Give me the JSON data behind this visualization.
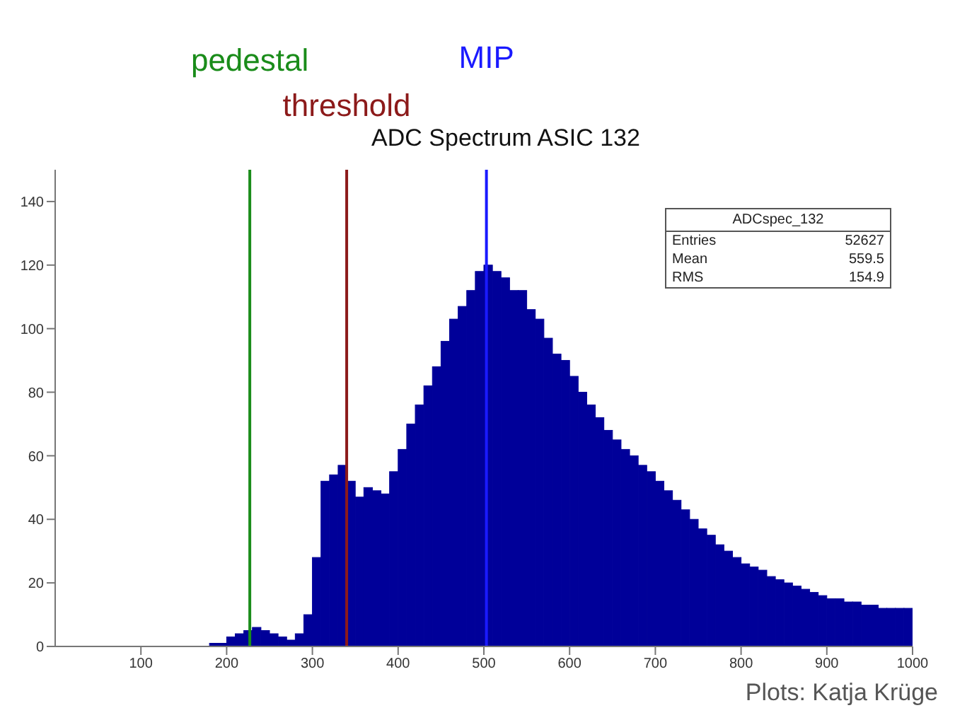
{
  "chart_data": {
    "type": "histogram",
    "title": "ADC Spectrum ASIC 132",
    "bins": [
      180,
      190,
      200,
      210,
      220,
      230,
      240,
      250,
      260,
      270,
      280,
      290,
      300,
      310,
      320,
      330,
      340,
      350,
      360,
      370,
      380,
      390,
      400,
      410,
      420,
      430,
      440,
      450,
      460,
      470,
      480,
      490,
      500,
      510,
      520,
      530,
      540,
      550,
      560,
      570,
      580,
      590,
      600,
      610,
      620,
      630,
      640,
      650,
      660,
      670,
      680,
      690,
      700,
      710,
      720,
      730,
      740,
      750,
      760,
      770,
      780,
      790,
      800,
      810,
      820,
      830,
      840,
      850,
      860,
      870,
      880,
      890,
      900,
      910,
      920,
      930,
      940,
      950,
      960,
      970,
      980,
      990,
      1000
    ],
    "values": [
      1,
      1,
      3,
      4,
      5,
      6,
      5,
      4,
      3,
      2,
      4,
      10,
      28,
      52,
      54,
      57,
      52,
      47,
      50,
      49,
      48,
      55,
      62,
      70,
      76,
      82,
      88,
      96,
      103,
      107,
      112,
      118,
      120,
      118,
      116,
      112,
      112,
      106,
      103,
      97,
      92,
      90,
      85,
      80,
      76,
      72,
      68,
      65,
      62,
      60,
      57,
      55,
      52,
      49,
      46,
      43,
      40,
      37,
      35,
      32,
      30,
      28,
      26,
      25,
      24,
      22,
      21,
      20,
      19,
      18,
      17,
      16,
      15,
      15,
      14,
      14,
      13,
      13,
      12,
      12,
      12,
      12
    ],
    "color": "#000099",
    "xlim": [
      0,
      1000
    ],
    "xticks": [
      100,
      200,
      300,
      400,
      500,
      600,
      700,
      800,
      900,
      1000
    ],
    "ylim": [
      0,
      150
    ],
    "yticks": [
      0,
      20,
      40,
      60,
      80,
      100,
      120,
      140
    ],
    "ref_lines": [
      {
        "axis": "x",
        "value": 227,
        "label": "pedestal",
        "color": "#1a8c1a"
      },
      {
        "axis": "x",
        "value": 340,
        "label": "threshold",
        "color": "#8c1a1a"
      },
      {
        "axis": "x",
        "value": 503,
        "label": "MIP",
        "color": "#1a1aff"
      }
    ],
    "annotations": [
      "ADCspec_132",
      "Entries 52627",
      "Mean 559.5",
      "RMS 154.9",
      "Plots: Katja Krüge"
    ]
  }
}
